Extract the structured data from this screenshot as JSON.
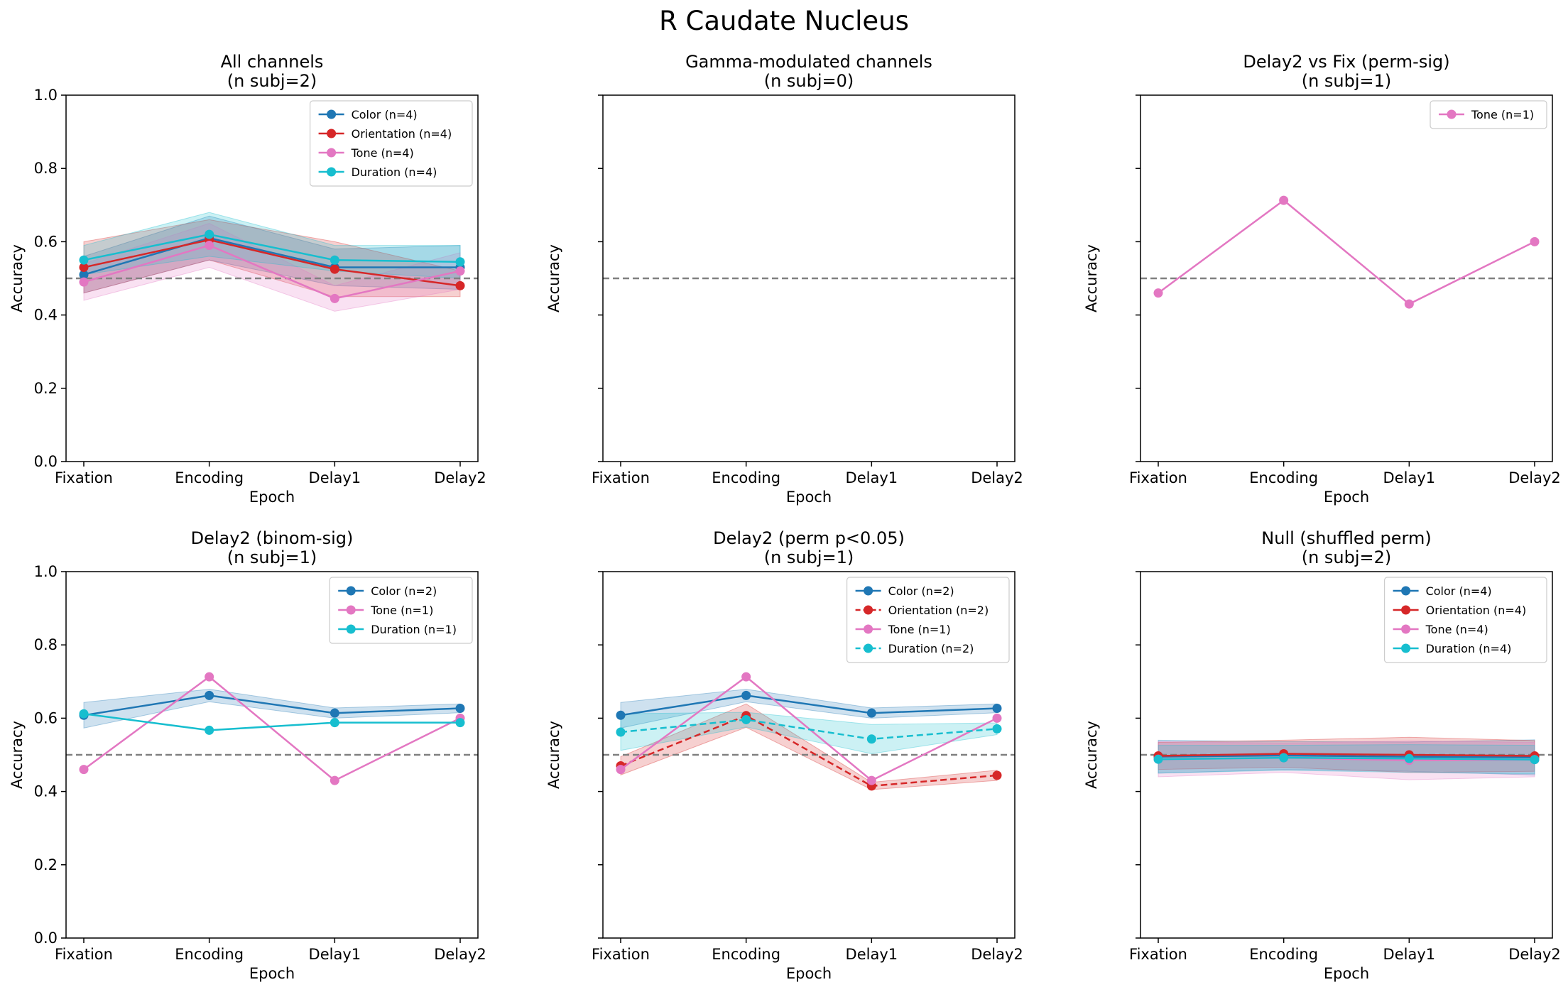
{
  "suptitle": "R Caudate Nucleus",
  "colors": {
    "Color": "#1f77b4",
    "Orientation": "#d62728",
    "Tone": "#e377c2",
    "Duration": "#17becf",
    "chance_line": "#808080"
  },
  "chart_data": [
    {
      "type": "line",
      "title": "All channels",
      "subtitle": "(n subj=2)",
      "xlabel": "Epoch",
      "ylabel": "Accuracy",
      "categories": [
        "Fixation",
        "Encoding",
        "Delay1",
        "Delay2"
      ],
      "ylim": [
        0,
        1
      ],
      "yticks": [
        "0.0",
        "0.2",
        "0.4",
        "0.6",
        "0.8",
        "1.0"
      ],
      "chance": 0.5,
      "legend_position": "top-right",
      "series": [
        {
          "name": "Color (n=4)",
          "key": "Color",
          "dashed": false,
          "values": [
            0.51,
            0.61,
            0.53,
            0.53
          ],
          "lower": [
            0.46,
            0.55,
            0.48,
            0.47
          ],
          "upper": [
            0.56,
            0.67,
            0.58,
            0.59
          ]
        },
        {
          "name": "Orientation (n=4)",
          "key": "Orientation",
          "dashed": false,
          "values": [
            0.53,
            0.605,
            0.525,
            0.48
          ],
          "lower": [
            0.46,
            0.55,
            0.45,
            0.45
          ],
          "upper": [
            0.6,
            0.66,
            0.6,
            0.52
          ]
        },
        {
          "name": "Tone (n=4)",
          "key": "Tone",
          "dashed": false,
          "values": [
            0.49,
            0.59,
            0.445,
            0.52
          ],
          "lower": [
            0.44,
            0.53,
            0.41,
            0.47
          ],
          "upper": [
            0.54,
            0.65,
            0.48,
            0.57
          ]
        },
        {
          "name": "Duration (n=4)",
          "key": "Duration",
          "dashed": false,
          "values": [
            0.55,
            0.62,
            0.55,
            0.545
          ],
          "lower": [
            0.51,
            0.56,
            0.52,
            0.5
          ],
          "upper": [
            0.59,
            0.68,
            0.59,
            0.59
          ]
        }
      ]
    },
    {
      "type": "line",
      "title": "Gamma-modulated channels",
      "subtitle": "(n subj=0)",
      "xlabel": "Epoch",
      "ylabel": "Accuracy",
      "categories": [
        "Fixation",
        "Encoding",
        "Delay1",
        "Delay2"
      ],
      "ylim": [
        0,
        1
      ],
      "yticks": [],
      "chance": 0.5,
      "legend_position": "none",
      "series": []
    },
    {
      "type": "line",
      "title": "Delay2 vs Fix (perm-sig)",
      "subtitle": "(n subj=1)",
      "xlabel": "Epoch",
      "ylabel": "Accuracy",
      "categories": [
        "Fixation",
        "Encoding",
        "Delay1",
        "Delay2"
      ],
      "ylim": [
        0,
        1
      ],
      "yticks": [],
      "chance": 0.5,
      "legend_position": "top-right",
      "series": [
        {
          "name": "Tone (n=1)",
          "key": "Tone",
          "dashed": false,
          "values": [
            0.46,
            0.713,
            0.43,
            0.6
          ]
        }
      ]
    },
    {
      "type": "line",
      "title": "Delay2 (binom-sig)",
      "subtitle": "(n subj=1)",
      "xlabel": "Epoch",
      "ylabel": "Accuracy",
      "categories": [
        "Fixation",
        "Encoding",
        "Delay1",
        "Delay2"
      ],
      "ylim": [
        0,
        1
      ],
      "yticks": [
        "0.0",
        "0.2",
        "0.4",
        "0.6",
        "0.8",
        "1.0"
      ],
      "chance": 0.5,
      "legend_position": "top-right",
      "series": [
        {
          "name": "Color (n=2)",
          "key": "Color",
          "dashed": false,
          "values": [
            0.608,
            0.662,
            0.614,
            0.627
          ],
          "lower": [
            0.573,
            0.645,
            0.6,
            0.615
          ],
          "upper": [
            0.643,
            0.679,
            0.628,
            0.639
          ]
        },
        {
          "name": "Tone (n=1)",
          "key": "Tone",
          "dashed": false,
          "values": [
            0.46,
            0.713,
            0.43,
            0.6
          ]
        },
        {
          "name": "Duration (n=1)",
          "key": "Duration",
          "dashed": false,
          "values": [
            0.612,
            0.567,
            0.588,
            0.588
          ]
        }
      ]
    },
    {
      "type": "line",
      "title": "Delay2 (perm p<0.05)",
      "subtitle": "(n subj=1)",
      "xlabel": "Epoch",
      "ylabel": "Accuracy",
      "categories": [
        "Fixation",
        "Encoding",
        "Delay1",
        "Delay2"
      ],
      "ylim": [
        0,
        1
      ],
      "yticks": [],
      "chance": 0.5,
      "legend_position": "top-right",
      "series": [
        {
          "name": "Color (n=2)",
          "key": "Color",
          "dashed": false,
          "values": [
            0.608,
            0.662,
            0.614,
            0.627
          ],
          "lower": [
            0.573,
            0.645,
            0.6,
            0.615
          ],
          "upper": [
            0.643,
            0.679,
            0.628,
            0.639
          ]
        },
        {
          "name": "Orientation (n=2)",
          "key": "Orientation",
          "dashed": true,
          "values": [
            0.47,
            0.607,
            0.415,
            0.444
          ],
          "lower": [
            0.445,
            0.575,
            0.405,
            0.43
          ],
          "upper": [
            0.495,
            0.639,
            0.425,
            0.458
          ]
        },
        {
          "name": "Tone (n=1)",
          "key": "Tone",
          "dashed": false,
          "values": [
            0.46,
            0.713,
            0.43,
            0.6
          ]
        },
        {
          "name": "Duration (n=2)",
          "key": "Duration",
          "dashed": true,
          "values": [
            0.562,
            0.596,
            0.543,
            0.571
          ],
          "lower": [
            0.512,
            0.576,
            0.503,
            0.555
          ],
          "upper": [
            0.612,
            0.616,
            0.583,
            0.587
          ]
        }
      ]
    },
    {
      "type": "line",
      "title": "Null (shuffled perm)",
      "subtitle": "(n subj=2)",
      "xlabel": "Epoch",
      "ylabel": "Accuracy",
      "categories": [
        "Fixation",
        "Encoding",
        "Delay1",
        "Delay2"
      ],
      "ylim": [
        0,
        1
      ],
      "yticks": [],
      "chance": 0.5,
      "legend_position": "top-right",
      "series": [
        {
          "name": "Color (n=4)",
          "key": "Color",
          "dashed": false,
          "values": [
            0.495,
            0.498,
            0.495,
            0.493
          ],
          "lower": [
            0.45,
            0.46,
            0.455,
            0.445
          ],
          "upper": [
            0.54,
            0.536,
            0.535,
            0.541
          ]
        },
        {
          "name": "Orientation (n=4)",
          "key": "Orientation",
          "dashed": false,
          "values": [
            0.497,
            0.503,
            0.5,
            0.497
          ],
          "lower": [
            0.46,
            0.466,
            0.452,
            0.455
          ],
          "upper": [
            0.534,
            0.54,
            0.548,
            0.539
          ]
        },
        {
          "name": "Tone (n=4)",
          "key": "Tone",
          "dashed": false,
          "values": [
            0.488,
            0.492,
            0.485,
            0.487
          ],
          "lower": [
            0.44,
            0.452,
            0.432,
            0.44
          ],
          "upper": [
            0.536,
            0.532,
            0.538,
            0.534
          ]
        },
        {
          "name": "Duration (n=4)",
          "key": "Duration",
          "dashed": false,
          "values": [
            0.488,
            0.492,
            0.49,
            0.487
          ],
          "lower": [
            0.45,
            0.458,
            0.452,
            0.448
          ],
          "upper": [
            0.526,
            0.526,
            0.528,
            0.526
          ]
        }
      ]
    }
  ]
}
